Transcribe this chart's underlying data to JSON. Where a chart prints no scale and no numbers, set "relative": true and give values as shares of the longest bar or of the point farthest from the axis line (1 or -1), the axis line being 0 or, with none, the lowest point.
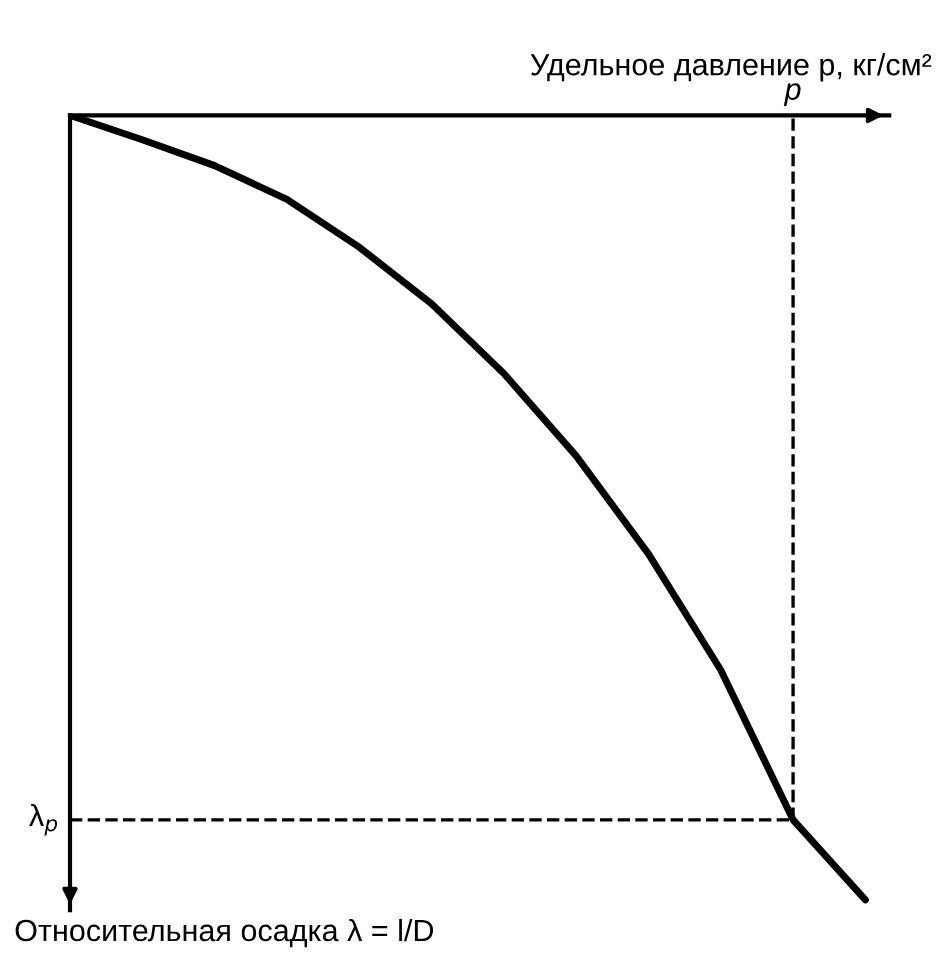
{
  "chart_data": {
    "type": "line",
    "relative": true,
    "xlabel": "Удельное давление p, кг/см²",
    "ylabel": "Относительная осадка λ = l/D",
    "categories": [
      null,
      null,
      null,
      null,
      null,
      null,
      null,
      null,
      null,
      null,
      null,
      null
    ],
    "series": [
      {
        "color": "#000000",
        "values": [
          0,
          -0.031,
          -0.064,
          -0.107,
          -0.168,
          -0.24,
          -0.329,
          -0.434,
          -0.559,
          -0.707,
          -0.898,
          -1
        ]
      }
    ],
    "ref_lines": [
      {
        "axis": "y",
        "value": -0.898,
        "label": "λ$_{p}$",
        "line_style": "dashed"
      }
    ],
    "annotations": [
      "p"
    ],
    "marker": "none",
    "line_style": "solid"
  }
}
